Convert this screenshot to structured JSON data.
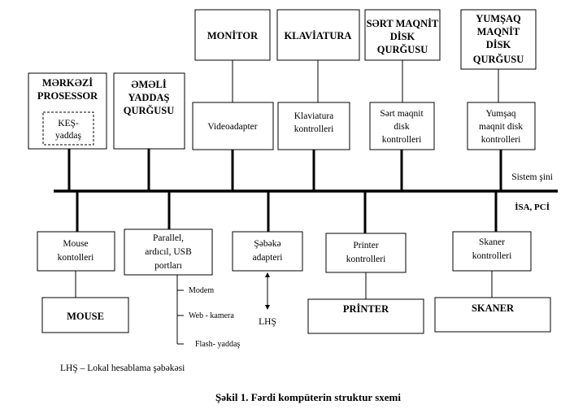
{
  "top_devices": {
    "monitor": [
      "MONİTOR"
    ],
    "keyboard": [
      "KLAVİATURA"
    ],
    "hard_disk": [
      "SƏRT MAQNİT",
      "DİSK",
      "QURĞUSU"
    ],
    "floppy_disk": [
      "YUMŞAQ",
      "MAQNİT",
      "DİSK",
      "QURĞUSU"
    ]
  },
  "cpu": {
    "label": [
      "MƏRKƏZİ",
      "PROSESSOR"
    ],
    "cache": [
      "KEŞ-",
      "yaddaş"
    ]
  },
  "ram": [
    "ƏMƏLİ",
    "YADDAŞ",
    "QURĞUSU"
  ],
  "upper_controllers": {
    "video": [
      "Videoadapter"
    ],
    "keyboard": [
      "Klaviatura",
      "kontrolleri"
    ],
    "hard_disk": [
      "Sərt maqnit",
      "disk",
      "kontrolleri"
    ],
    "floppy": [
      "Yumşaq",
      "maqnit disk",
      "kontrolleri"
    ]
  },
  "bus": {
    "system_label": "Sistem şini",
    "isa_label": "İSA, PCİ"
  },
  "lower_controllers": {
    "mouse": [
      "Mouse",
      "kontolleri"
    ],
    "ports": [
      "Parallel,",
      "ardıcıl, USB",
      "portları"
    ],
    "network": [
      "Şəbəkə",
      "adapteri"
    ],
    "printer": [
      "Printer",
      "kontrolleri"
    ],
    "scanner": [
      "Skaner",
      "kontrolleri"
    ]
  },
  "ports_branches": [
    "Modem",
    "Web - kamera",
    "Flash- yaddaş"
  ],
  "network_target": "LHŞ",
  "peripherals": {
    "mouse": "MOUSE",
    "printer": "PRİNTER",
    "scanner": "SKANER"
  },
  "legend": "LHŞ – Lokal hesablama şəbəkəsi",
  "caption": "Şəkil 1. Fərdi kompüterin struktur sxemi"
}
